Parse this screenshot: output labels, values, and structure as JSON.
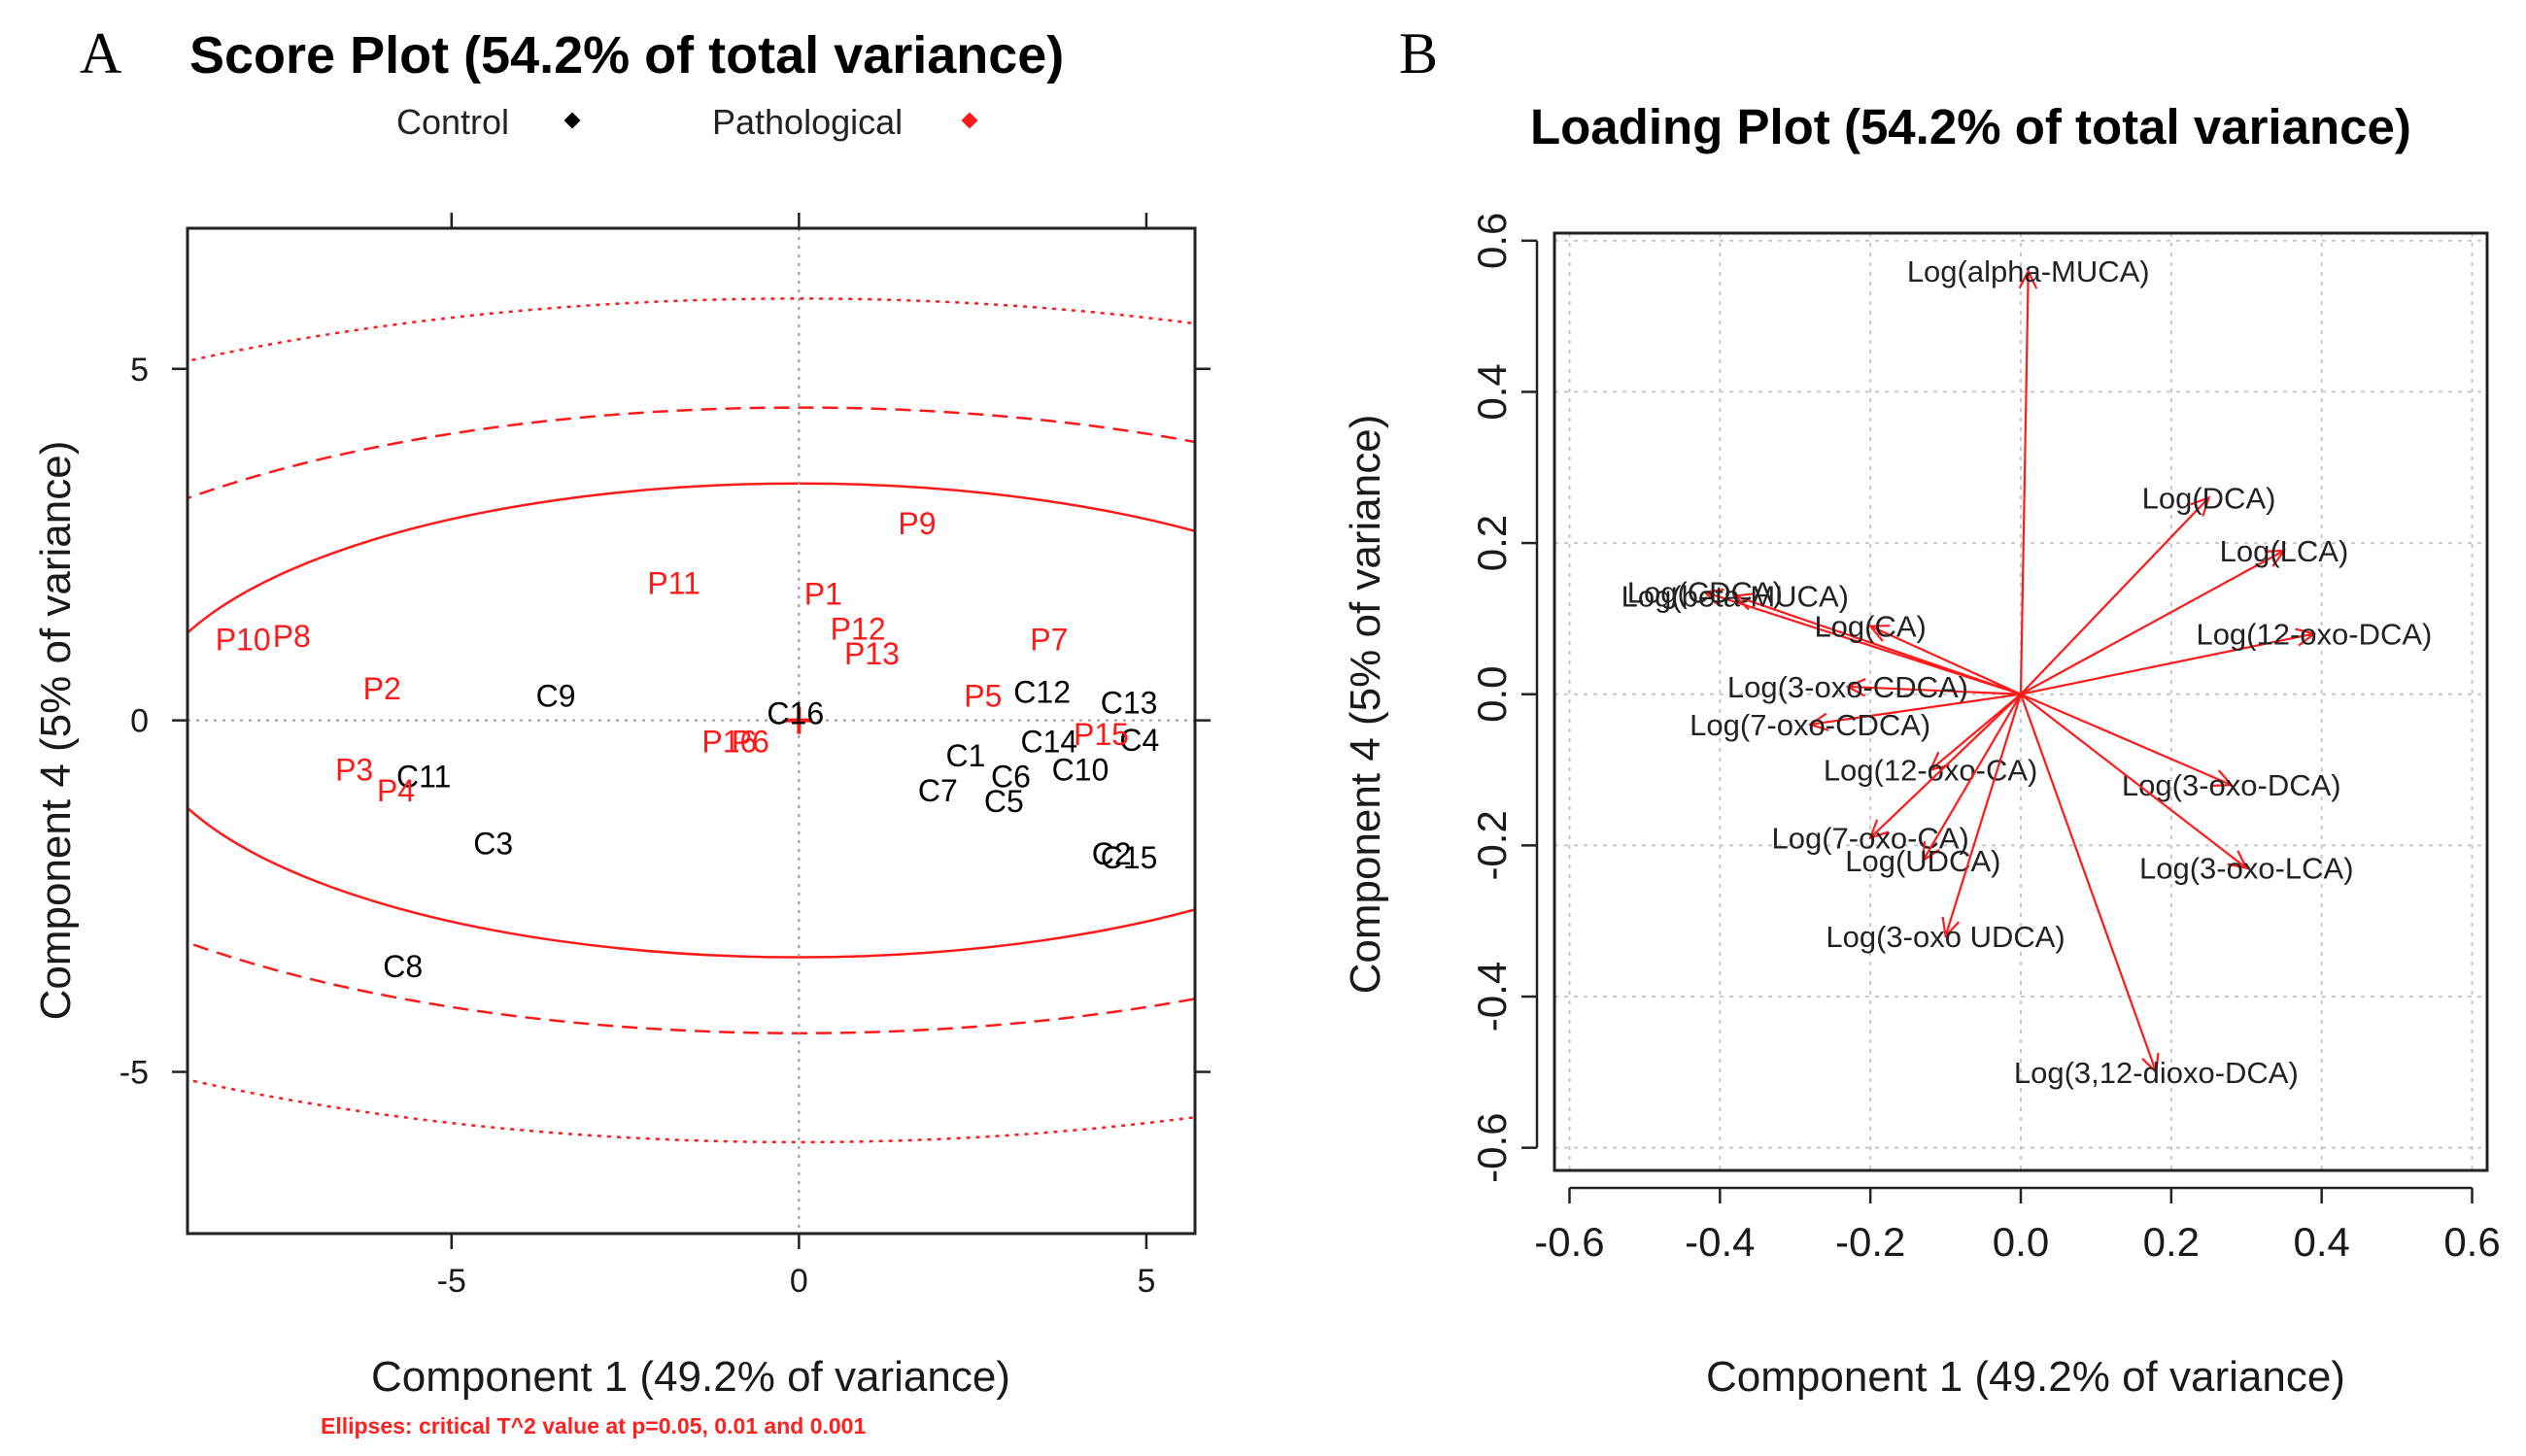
{
  "colors": {
    "control": "#000000",
    "pathological": "#ff1a1a",
    "grid": "#c8c8c8",
    "arrow": "#ff1a1a"
  },
  "chart_data": [
    {
      "panel": "A",
      "type": "scatter",
      "title": "Score Plot (54.2% of total variance)",
      "xlabel": "Component 1 (49.2% of variance)",
      "ylabel": "Component 4 (5% of variance)",
      "xlim": [
        -8.8,
        5.7
      ],
      "ylim": [
        -7.3,
        7.0
      ],
      "xticks": [
        -5,
        0,
        5
      ],
      "yticks": [
        -5,
        0,
        5
      ],
      "xtick_labels": [
        "-5",
        "0",
        "5"
      ],
      "ytick_labels": [
        "-5",
        "0",
        "5"
      ],
      "legend": [
        {
          "label": "Control",
          "color": "#000000"
        },
        {
          "label": "Pathological",
          "color": "#ff1a1a"
        }
      ],
      "ellipses": {
        "center": [
          0,
          0
        ],
        "levels": [
          {
            "p": 0.05,
            "a": 9.47,
            "b": 3.37,
            "style": "solid"
          },
          {
            "p": 0.01,
            "a": 12.5,
            "b": 4.45,
            "style": "dashed"
          },
          {
            "p": 0.001,
            "a": 16.8,
            "b": 6.0,
            "style": "dotted"
          }
        ]
      },
      "note": "Ellipses: critical T^2 value at p=0.05, 0.01 and 0.001",
      "series": [
        {
          "name": "Control",
          "points": [
            {
              "label": "C16",
              "x": -0.05,
              "y": 0.1
            },
            {
              "label": "C9",
              "x": -3.5,
              "y": 0.35
            },
            {
              "label": "C11",
              "x": -5.4,
              "y": -0.8
            },
            {
              "label": "C3",
              "x": -4.4,
              "y": -1.75
            },
            {
              "label": "C8",
              "x": -5.7,
              "y": -3.5
            },
            {
              "label": "C12",
              "x": 3.5,
              "y": 0.4
            },
            {
              "label": "C13",
              "x": 4.75,
              "y": 0.25
            },
            {
              "label": "C14",
              "x": 3.6,
              "y": -0.3
            },
            {
              "label": "C4",
              "x": 4.9,
              "y": -0.28
            },
            {
              "label": "C10",
              "x": 4.05,
              "y": -0.7
            },
            {
              "label": "C1",
              "x": 2.4,
              "y": -0.5
            },
            {
              "label": "C6",
              "x": 3.05,
              "y": -0.8
            },
            {
              "label": "C7",
              "x": 2.0,
              "y": -1.0
            },
            {
              "label": "C5",
              "x": 2.95,
              "y": -1.15
            },
            {
              "label": "C2",
              "x": 4.5,
              "y": -1.9
            },
            {
              "label": "C15",
              "x": 4.75,
              "y": -1.95
            }
          ]
        },
        {
          "name": "Pathological",
          "points": [
            {
              "label": "P9",
              "x": 1.7,
              "y": 2.8
            },
            {
              "label": "P11",
              "x": -1.8,
              "y": 1.95
            },
            {
              "label": "P1",
              "x": 0.35,
              "y": 1.8
            },
            {
              "label": "P12",
              "x": 0.85,
              "y": 1.3
            },
            {
              "label": "P13",
              "x": 1.05,
              "y": 0.95
            },
            {
              "label": "P7",
              "x": 3.6,
              "y": 1.15
            },
            {
              "label": "P10",
              "x": -8.0,
              "y": 1.15
            },
            {
              "label": "P8",
              "x": -7.3,
              "y": 1.2
            },
            {
              "label": "P2",
              "x": -6.0,
              "y": 0.45
            },
            {
              "label": "P5",
              "x": 2.65,
              "y": 0.35
            },
            {
              "label": "P6",
              "x": -0.7,
              "y": -0.3
            },
            {
              "label": "P16",
              "x": -1.0,
              "y": -0.3
            },
            {
              "label": "P15",
              "x": 4.35,
              "y": -0.2
            },
            {
              "label": "P3",
              "x": -6.4,
              "y": -0.7
            },
            {
              "label": "P4",
              "x": -5.8,
              "y": -1.0
            }
          ]
        }
      ]
    },
    {
      "panel": "B",
      "type": "scatter",
      "title": "Loading Plot (54.2% of total variance)",
      "xlabel": "Component 1 (49.2% of variance)",
      "ylabel": "Component 4 (5% of variance)",
      "xlim": [
        -0.62,
        0.62
      ],
      "ylim": [
        -0.63,
        0.61
      ],
      "xticks": [
        -0.6,
        -0.4,
        -0.2,
        0.0,
        0.2,
        0.4,
        0.6
      ],
      "yticks": [
        -0.6,
        -0.4,
        -0.2,
        0.0,
        0.2,
        0.4,
        0.6
      ],
      "xtick_labels": [
        "-0.6",
        "-0.4",
        "-0.2",
        "0.0",
        "0.2",
        "0.4",
        "0.6"
      ],
      "ytick_labels": [
        "-0.6",
        "-0.4",
        "-0.2",
        "0.0",
        "0.2",
        "0.4",
        "0.6"
      ],
      "grid": true,
      "loadings": [
        {
          "label": "Log(alpha-MUCA)",
          "x": 0.01,
          "y": 0.56
        },
        {
          "label": "Log(DCA)",
          "x": 0.25,
          "y": 0.26
        },
        {
          "label": "Log(LCA)",
          "x": 0.35,
          "y": 0.19
        },
        {
          "label": "Log(12-oxo-DCA)",
          "x": 0.39,
          "y": 0.08
        },
        {
          "label": "Log(CDCA)",
          "x": -0.42,
          "y": 0.135
        },
        {
          "label": "Log(beta-MUCA)",
          "x": -0.38,
          "y": 0.13
        },
        {
          "label": "Log(CA)",
          "x": -0.2,
          "y": 0.09
        },
        {
          "label": "Log(3-oxo-CDCA)",
          "x": -0.23,
          "y": 0.01
        },
        {
          "label": "Log(7-oxo-CDCA)",
          "x": -0.28,
          "y": -0.04
        },
        {
          "label": "Log(12-oxo-CA)",
          "x": -0.12,
          "y": -0.1
        },
        {
          "label": "Log(3-oxo-DCA)",
          "x": 0.28,
          "y": -0.12
        },
        {
          "label": "Log(7-oxo-CA)",
          "x": -0.2,
          "y": -0.19
        },
        {
          "label": "Log(UDCA)",
          "x": -0.13,
          "y": -0.22
        },
        {
          "label": "Log(3-oxo-LCA)",
          "x": 0.3,
          "y": -0.23
        },
        {
          "label": "Log(3-oxo UDCA)",
          "x": -0.1,
          "y": -0.32
        },
        {
          "label": "Log(3,12-dioxo-DCA)",
          "x": 0.18,
          "y": -0.5
        }
      ]
    }
  ],
  "panel_letters": {
    "a": "A",
    "b": "B"
  }
}
